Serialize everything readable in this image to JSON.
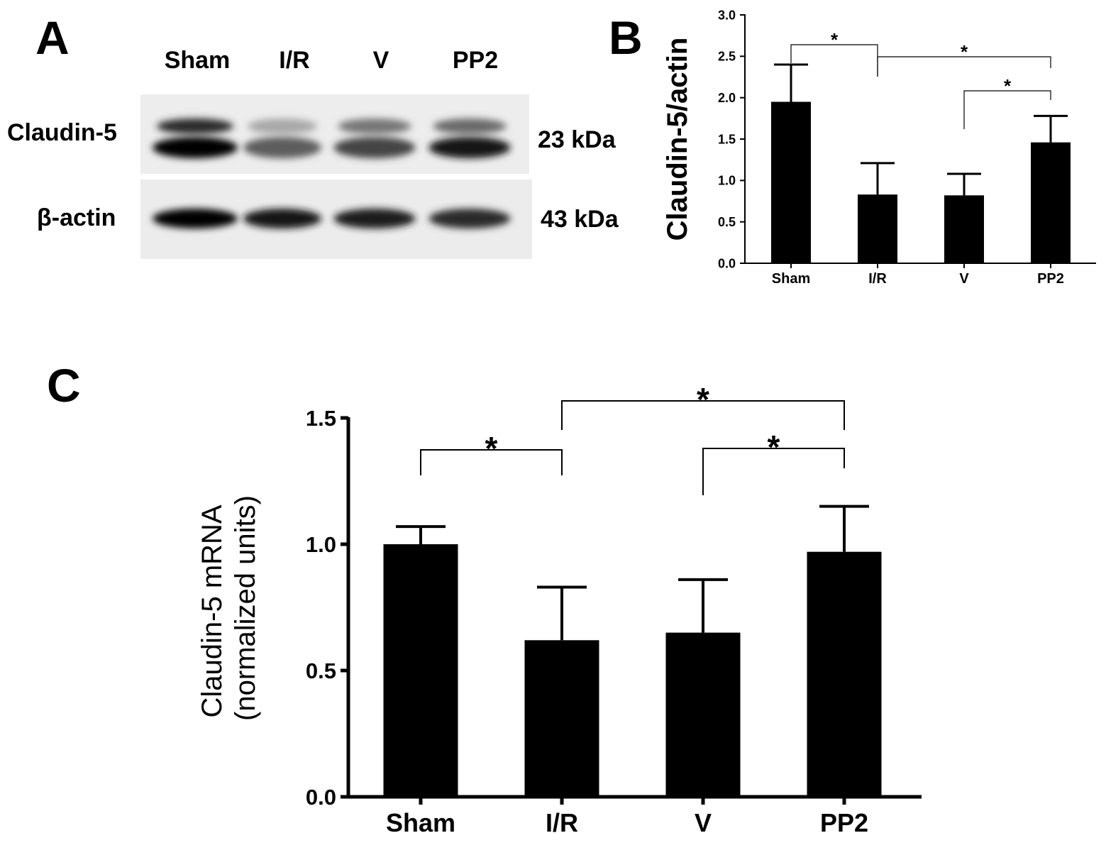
{
  "panels": {
    "a": "A",
    "b": "B",
    "c": "C"
  },
  "blot": {
    "lanes": [
      "Sham",
      "I/R",
      "V",
      "PP2"
    ],
    "rows": [
      {
        "label": "Claudin-5",
        "size": "23 kDa",
        "upper_band_intensity": [
          0.85,
          0.35,
          0.55,
          0.6
        ],
        "lower_band_intensity": [
          1.0,
          0.65,
          0.75,
          0.95
        ]
      },
      {
        "label": "β-actin",
        "size": "43 kDa",
        "band_intensity": [
          1.0,
          0.95,
          0.9,
          0.85
        ]
      }
    ]
  },
  "chart_data": [
    {
      "type": "bar",
      "panel": "B",
      "categories": [
        "Sham",
        "I/R",
        "V",
        "PP2"
      ],
      "values": [
        1.95,
        0.83,
        0.82,
        1.46
      ],
      "errors": [
        0.45,
        0.38,
        0.26,
        0.32
      ],
      "ylabel": "Claudin-5/actin",
      "xlabel": "",
      "title": "",
      "ylim": [
        0,
        3.0
      ],
      "yticks": [
        "0.0",
        "0.5",
        "1.0",
        "1.5",
        "2.0",
        "2.5",
        "3.0"
      ],
      "bar_color": "#000000",
      "significance": [
        {
          "from": "Sham",
          "to": "I/R",
          "label": "*"
        },
        {
          "from": "I/R",
          "to": "PP2",
          "label": "*"
        },
        {
          "from": "V",
          "to": "PP2",
          "label": "*"
        }
      ]
    },
    {
      "type": "bar",
      "panel": "C",
      "categories": [
        "Sham",
        "I/R",
        "V",
        "PP2"
      ],
      "values": [
        1.0,
        0.62,
        0.65,
        0.97
      ],
      "errors": [
        0.07,
        0.21,
        0.21,
        0.18
      ],
      "ylabel": [
        "Claudin-5 mRNA",
        "(normalized units)"
      ],
      "xlabel": "",
      "title": "",
      "ylim": [
        0,
        1.5
      ],
      "yticks": [
        "0.0",
        "0.5",
        "1.0",
        "1.5"
      ],
      "bar_color": "#000000",
      "significance": [
        {
          "from": "Sham",
          "to": "I/R",
          "label": "*"
        },
        {
          "from": "I/R",
          "to": "PP2",
          "label": "*"
        },
        {
          "from": "V",
          "to": "PP2",
          "label": "*"
        }
      ]
    }
  ]
}
